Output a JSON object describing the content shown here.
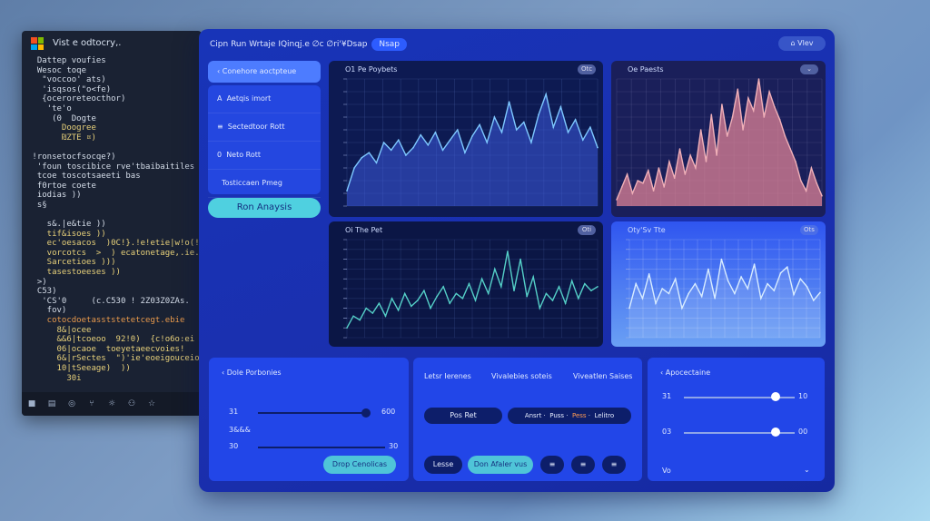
{
  "editor": {
    "title": "Vist e odtocry,.",
    "logo_colors": [
      "#f25022",
      "#7fba00",
      "#00a4ef",
      "#ffb900"
    ],
    "code_lines": [
      {
        "t": "  Dattep voufies",
        "c": "c-w"
      },
      {
        "t": "  Wesoc toqe",
        "c": "c-w"
      },
      {
        "t": "   \"voccoo' ats)",
        "c": "c-w"
      },
      {
        "t": "   'isqsos(\"o<fe)",
        "c": "c-w"
      },
      {
        "t": "   {oceroreteocthor)",
        "c": "c-w"
      },
      {
        "t": "    'te'o",
        "c": "c-w"
      },
      {
        "t": "     (0  Dogte",
        "c": "c-w"
      },
      {
        "t": "       Doogree",
        "c": "c-y"
      },
      {
        "t": "       ₪ZTE ¤)",
        "c": "c-y"
      },
      {
        "t": "",
        "c": "c-w"
      },
      {
        "t": " !ronsetocfsocqe?)",
        "c": "c-w"
      },
      {
        "t": "  'foun toscibice rve'tbaibaitiles",
        "c": "c-w"
      },
      {
        "t": "  tcoe toscotsaeeti bas",
        "c": "c-w"
      },
      {
        "t": "  f0rtoe coete",
        "c": "c-w"
      },
      {
        "t": "  iodias ))",
        "c": "c-w"
      },
      {
        "t": "  s§",
        "c": "c-w"
      },
      {
        "t": "",
        "c": "c-w"
      },
      {
        "t": "    s&.|e&tie ))",
        "c": "c-w"
      },
      {
        "t": "    tif&isoes ))",
        "c": "c-y"
      },
      {
        "t": "    ec'oesacos  )0C!}.!e!etie|w!o(!!",
        "c": "c-y"
      },
      {
        "t": "    vorcotcs  >  ) ecatonetage,.ie.os",
        "c": "c-y"
      },
      {
        "t": "    Sarcetioes )))",
        "c": "c-y"
      },
      {
        "t": "    tasestoeeses ))",
        "c": "c-y"
      },
      {
        "t": "  >)",
        "c": "c-w"
      },
      {
        "t": "  C53)",
        "c": "c-w"
      },
      {
        "t": "   'CS'0     (c.C530 ! 2Z03Z0ZAs.",
        "c": "c-w"
      },
      {
        "t": "    fov)",
        "c": "c-w"
      },
      {
        "t": "    cotocdoetasststetetcegt.ebie",
        "c": "c-o"
      },
      {
        "t": "      8&|ocee",
        "c": "c-y"
      },
      {
        "t": "      &&6|tcoeoo  92!0)  {c!o6o:ei",
        "c": "c-y"
      },
      {
        "t": "      06|ocaoe  toeyetaeecvoies!",
        "c": "c-y"
      },
      {
        "t": "      6&|rSectes  \")'ie'eoeigouceio",
        "c": "c-y"
      },
      {
        "t": "      10|tSeeage)  ))",
        "c": "c-y"
      },
      {
        "t": "        30i",
        "c": "c-y"
      }
    ],
    "toolbar_icons": [
      "square-icon",
      "file-icon",
      "search-icon",
      "branch-icon",
      "debug-icon",
      "users-icon",
      "star-icon"
    ]
  },
  "panel": {
    "top_title": "Cipn Run Wrtaje IQinqj.e ∅c ∅ri'¥Dsap",
    "top_pill": "Nsap",
    "user_button": "Vlev",
    "menu": {
      "top_item": "Conehore aoctpteue Wcane",
      "items": [
        "Aetqis imort",
        "Sectedtoor Rott",
        "Neto Rott",
        "Tosticcaen Pmeg"
      ],
      "item_icons": [
        "A",
        "≡",
        "0",
        ""
      ],
      "run_button": "Ron Anaysis"
    },
    "charts": [
      {
        "title": "O1 Pe Poybets",
        "badge": "Otc"
      },
      {
        "title": "Oe Paests",
        "badge": "⌄"
      },
      {
        "title": "Oi The Pet",
        "badge": "Oti"
      },
      {
        "title": "Oty'Sv Tte",
        "badge": "Ots"
      }
    ],
    "controls_left": {
      "title": "Dole Porbonies",
      "rows": [
        {
          "label": "31",
          "value": "600",
          "fraction": 0.75
        },
        {
          "label": "3&&&",
          "value": "",
          "fraction": null
        },
        {
          "label": "30",
          "value": "30",
          "fraction": 0.0
        }
      ],
      "button": "Drop Cenolicas"
    },
    "controls_mid": {
      "tabs": [
        "Letsr Ierenes",
        "Vivalebies  soteis",
        "Viveatlen  Saises"
      ],
      "btn_left": "Pos Ret",
      "seg": [
        "Ansrt",
        "Puss",
        "Pess",
        "Lelitro"
      ],
      "btn_bottom_left": "Lesse",
      "btn_bottom_main": "Don Afaler vus",
      "icon_buttons": [
        "≡",
        "≡",
        "≡"
      ]
    },
    "controls_right": {
      "title": "Apocectaine",
      "rows": [
        {
          "label": "31",
          "value": "10",
          "fraction": 0.85
        },
        {
          "label": "03",
          "value": "00",
          "fraction": 0.85
        }
      ],
      "footer_label": "Vo",
      "footer_icon": "⌄"
    }
  },
  "chart_data": [
    {
      "type": "line",
      "title": "O1 Pe Poybets",
      "ylim": [
        0,
        100
      ],
      "y_ticks": [
        "",
        "",
        "",
        "",
        "",
        "",
        "",
        "",
        "",
        "",
        ""
      ],
      "values": [
        12,
        30,
        38,
        42,
        34,
        50,
        44,
        52,
        40,
        46,
        56,
        48,
        58,
        44,
        52,
        60,
        42,
        55,
        64,
        50,
        70,
        58,
        82,
        60,
        66,
        50,
        72,
        88,
        62,
        78,
        58,
        68,
        52,
        62,
        46
      ]
    },
    {
      "type": "area",
      "title": "Oe Paests",
      "ylim": [
        0,
        100
      ],
      "values": [
        5,
        15,
        25,
        10,
        20,
        18,
        28,
        12,
        30,
        15,
        35,
        22,
        45,
        25,
        40,
        30,
        60,
        35,
        72,
        40,
        80,
        55,
        70,
        92,
        60,
        85,
        75,
        100,
        70,
        90,
        78,
        68,
        55,
        45,
        35,
        20,
        12,
        30,
        18,
        8
      ]
    },
    {
      "type": "line",
      "title": "Oi The Pet",
      "ylim": [
        0,
        100
      ],
      "values": [
        10,
        22,
        18,
        30,
        25,
        35,
        22,
        40,
        28,
        45,
        32,
        38,
        48,
        30,
        42,
        52,
        35,
        45,
        40,
        55,
        38,
        60,
        45,
        70,
        52,
        88,
        48,
        80,
        42,
        62,
        30,
        45,
        38,
        52,
        35,
        58,
        40,
        55,
        48,
        52
      ]
    },
    {
      "type": "line",
      "title": "Oty'Sv Tte",
      "ylim": [
        0,
        100
      ],
      "values": [
        30,
        55,
        40,
        65,
        35,
        50,
        45,
        60,
        30,
        45,
        55,
        42,
        70,
        40,
        80,
        58,
        45,
        62,
        50,
        75,
        40,
        55,
        48,
        66,
        72,
        44,
        60,
        52,
        38,
        46
      ]
    }
  ]
}
